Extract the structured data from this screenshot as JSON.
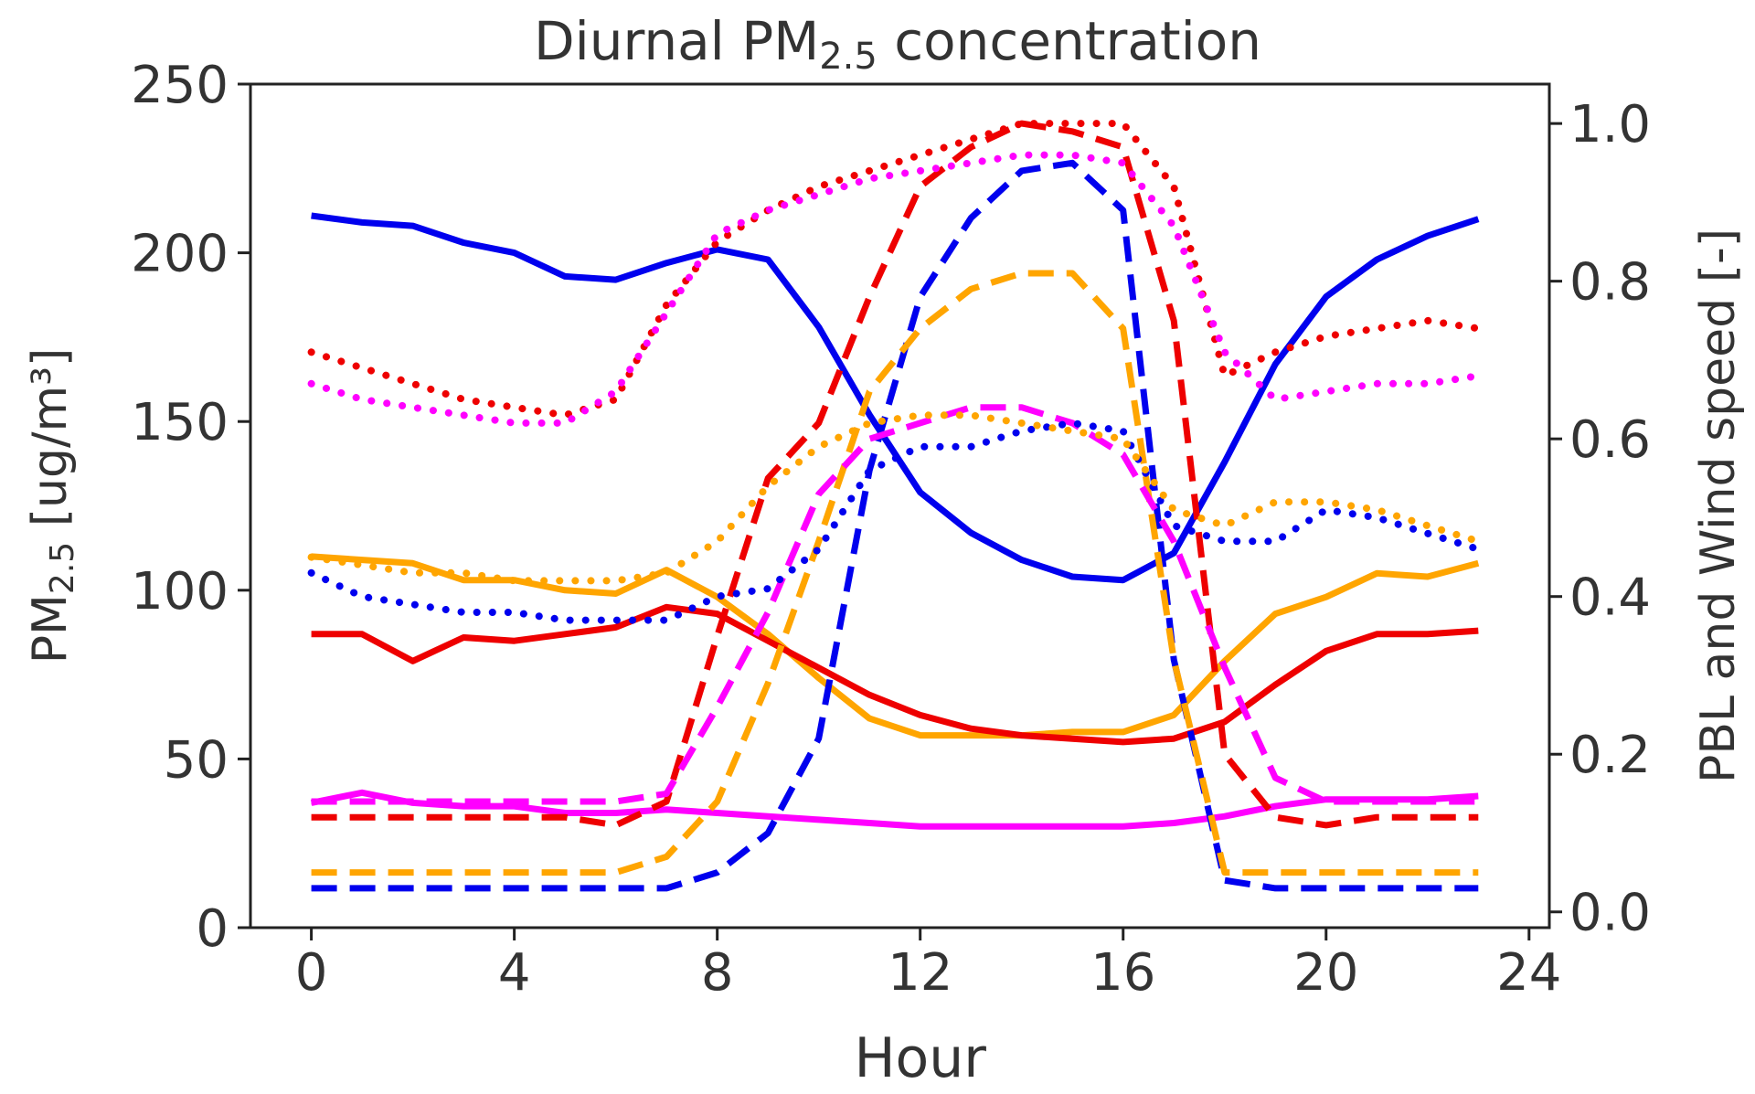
{
  "chart_data": {
    "type": "line",
    "title": "Diurnal PM2.5 concentration",
    "title_parts": {
      "pre": "Diurnal PM",
      "sub": "2.5",
      "post": " concentration"
    },
    "xlabel": "Hour",
    "ylabel": "PM2.5 [ug/m³]",
    "ylabel_parts": {
      "pre": "PM",
      "sub": "2.5",
      "post": " [ug/m³]"
    },
    "y2label": "PBL and Wind speed [-]",
    "xlim": [
      -1.2,
      24.4
    ],
    "ylim": [
      0,
      250
    ],
    "y2lim": [
      -0.02,
      1.05
    ],
    "xticks": [
      0,
      4,
      8,
      12,
      16,
      20,
      24
    ],
    "xtick_labels": [
      "0",
      "4",
      "8",
      "12",
      "16",
      "20",
      "24"
    ],
    "yticks": [
      0,
      50,
      100,
      150,
      200,
      250
    ],
    "ytick_labels": [
      "0",
      "50",
      "100",
      "150",
      "200",
      "250"
    ],
    "y2ticks": [
      0,
      0.2,
      0.4,
      0.6,
      0.8,
      1.0
    ],
    "y2tick_labels": [
      "0.0",
      "0.2",
      "0.4",
      "0.6",
      "0.8",
      "1.0"
    ],
    "grid": false,
    "x": [
      0,
      1,
      2,
      3,
      4,
      5,
      6,
      7,
      8,
      9,
      10,
      11,
      12,
      13,
      14,
      15,
      16,
      17,
      18,
      19,
      20,
      21,
      22,
      23
    ],
    "series": [
      {
        "group": "pm25",
        "axis": "left",
        "style": "solid",
        "color": "#0000ee",
        "values": [
          211,
          209,
          208,
          203,
          200,
          193,
          192,
          197,
          201,
          198,
          178,
          152,
          129,
          117,
          109,
          104,
          103,
          111,
          138,
          167,
          187,
          198,
          205,
          210
        ]
      },
      {
        "group": "pm25",
        "axis": "left",
        "style": "solid",
        "color": "#ffa500",
        "values": [
          110,
          109,
          108,
          103,
          103,
          100,
          99,
          106,
          98,
          87,
          74,
          62,
          57,
          57,
          57,
          58,
          58,
          63,
          79,
          93,
          98,
          105,
          104,
          108
        ]
      },
      {
        "group": "pm25",
        "axis": "left",
        "style": "solid",
        "color": "#ee0000",
        "values": [
          87,
          87,
          79,
          86,
          85,
          87,
          89,
          95,
          93,
          85,
          77,
          69,
          63,
          59,
          57,
          56,
          55,
          56,
          61,
          72,
          82,
          87,
          87,
          88
        ]
      },
      {
        "group": "pm25",
        "axis": "left",
        "style": "solid",
        "color": "#ff00ff",
        "values": [
          37,
          40,
          37,
          36,
          36,
          34,
          34,
          35,
          34,
          33,
          32,
          31,
          30,
          30,
          30,
          30,
          30,
          31,
          33,
          36,
          38,
          38,
          38,
          39
        ]
      },
      {
        "group": "pbl",
        "axis": "right",
        "style": "dashed",
        "color": "#ee0000",
        "values": [
          0.12,
          0.12,
          0.12,
          0.12,
          0.12,
          0.12,
          0.11,
          0.14,
          0.35,
          0.55,
          0.62,
          0.78,
          0.92,
          0.97,
          1.0,
          0.99,
          0.97,
          0.75,
          0.2,
          0.12,
          0.11,
          0.12,
          0.12,
          0.12
        ]
      },
      {
        "group": "pbl",
        "axis": "right",
        "style": "dashed",
        "color": "#0000ee",
        "values": [
          0.03,
          0.03,
          0.03,
          0.03,
          0.03,
          0.03,
          0.03,
          0.03,
          0.05,
          0.1,
          0.22,
          0.56,
          0.78,
          0.88,
          0.94,
          0.95,
          0.89,
          0.32,
          0.04,
          0.03,
          0.03,
          0.03,
          0.03,
          0.03
        ]
      },
      {
        "group": "pbl",
        "axis": "right",
        "style": "dashed",
        "color": "#ffa500",
        "values": [
          0.05,
          0.05,
          0.05,
          0.05,
          0.05,
          0.05,
          0.05,
          0.07,
          0.14,
          0.29,
          0.47,
          0.66,
          0.74,
          0.79,
          0.81,
          0.81,
          0.74,
          0.32,
          0.05,
          0.05,
          0.05,
          0.05,
          0.05,
          0.05
        ]
      },
      {
        "group": "pbl",
        "axis": "right",
        "style": "dashed",
        "color": "#ff00ff",
        "values": [
          0.14,
          0.14,
          0.14,
          0.14,
          0.14,
          0.14,
          0.14,
          0.15,
          0.26,
          0.38,
          0.53,
          0.6,
          0.62,
          0.64,
          0.64,
          0.62,
          0.58,
          0.47,
          0.31,
          0.17,
          0.14,
          0.14,
          0.14,
          0.14
        ]
      },
      {
        "group": "wind",
        "axis": "right",
        "style": "dotted",
        "color": "#ee0000",
        "values": [
          0.71,
          0.69,
          0.67,
          0.65,
          0.64,
          0.63,
          0.65,
          0.77,
          0.85,
          0.89,
          0.92,
          0.94,
          0.96,
          0.98,
          1.0,
          1.0,
          1.0,
          0.92,
          0.68,
          0.71,
          0.73,
          0.74,
          0.75,
          0.74
        ]
      },
      {
        "group": "wind",
        "axis": "right",
        "style": "dotted",
        "color": "#ff00ff",
        "values": [
          0.67,
          0.65,
          0.64,
          0.63,
          0.62,
          0.62,
          0.66,
          0.76,
          0.86,
          0.89,
          0.91,
          0.93,
          0.94,
          0.95,
          0.96,
          0.96,
          0.95,
          0.87,
          0.71,
          0.65,
          0.66,
          0.67,
          0.67,
          0.68
        ]
      },
      {
        "group": "wind",
        "axis": "right",
        "style": "dotted",
        "color": "#0000ee",
        "values": [
          0.43,
          0.4,
          0.39,
          0.38,
          0.38,
          0.37,
          0.37,
          0.37,
          0.4,
          0.41,
          0.46,
          0.56,
          0.59,
          0.59,
          0.61,
          0.62,
          0.61,
          0.49,
          0.47,
          0.47,
          0.51,
          0.5,
          0.48,
          0.46
        ]
      },
      {
        "group": "wind",
        "axis": "right",
        "style": "dotted",
        "color": "#ffa500",
        "values": [
          0.45,
          0.44,
          0.43,
          0.43,
          0.42,
          0.42,
          0.42,
          0.43,
          0.47,
          0.54,
          0.59,
          0.62,
          0.63,
          0.63,
          0.62,
          0.61,
          0.6,
          0.51,
          0.49,
          0.52,
          0.52,
          0.51,
          0.49,
          0.47
        ]
      }
    ]
  }
}
